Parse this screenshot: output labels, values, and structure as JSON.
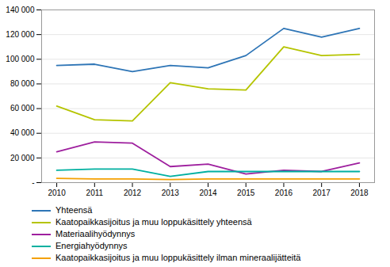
{
  "chart_data": {
    "type": "line",
    "x": [
      2010,
      2011,
      2012,
      2013,
      2014,
      2015,
      2016,
      2017,
      2018
    ],
    "series": [
      {
        "name": "Yhteensä",
        "color": "#2e75b6",
        "values": [
          95000,
          96000,
          90000,
          95000,
          93000,
          103000,
          125000,
          118000,
          125000
        ]
      },
      {
        "name": "Kaatopaikkasijoitus ja muu loppukäsittely yhteensä",
        "color": "#b5c400",
        "values": [
          62000,
          51000,
          50000,
          81000,
          76000,
          75000,
          110000,
          103000,
          104000
        ]
      },
      {
        "name": "Materiaalihyödynnys",
        "color": "#9e1f9e",
        "values": [
          25000,
          33000,
          32000,
          13000,
          15000,
          7000,
          10000,
          9000,
          16000
        ]
      },
      {
        "name": "Energiahyödynnys",
        "color": "#00b0a0",
        "values": [
          10000,
          11000,
          11000,
          5000,
          9000,
          9000,
          9000,
          9000,
          9000
        ]
      },
      {
        "name": "Kaatopaikkasijoitus ja muu loppukäsittely ilman mineraalijätteitä",
        "color": "#f4a000",
        "values": [
          3500,
          3000,
          3000,
          2500,
          3000,
          3000,
          3000,
          3000,
          3000
        ]
      }
    ],
    "xlim": [
      2009.6,
      2018.4
    ],
    "xticks": [
      2010,
      2011,
      2012,
      2013,
      2014,
      2015,
      2016,
      2017,
      2018
    ],
    "ylim": [
      0,
      140000
    ],
    "yticks": [
      {
        "value": 0,
        "label": "-"
      },
      {
        "value": 20000,
        "label": "20 000"
      },
      {
        "value": 40000,
        "label": "40 000"
      },
      {
        "value": 60000,
        "label": "60 000"
      },
      {
        "value": 80000,
        "label": "80 000"
      },
      {
        "value": 100000,
        "label": "100 000"
      },
      {
        "value": 120000,
        "label": "120 000"
      },
      {
        "value": 140000,
        "label": "140 000"
      }
    ],
    "grid": true,
    "legend": "bottom"
  }
}
